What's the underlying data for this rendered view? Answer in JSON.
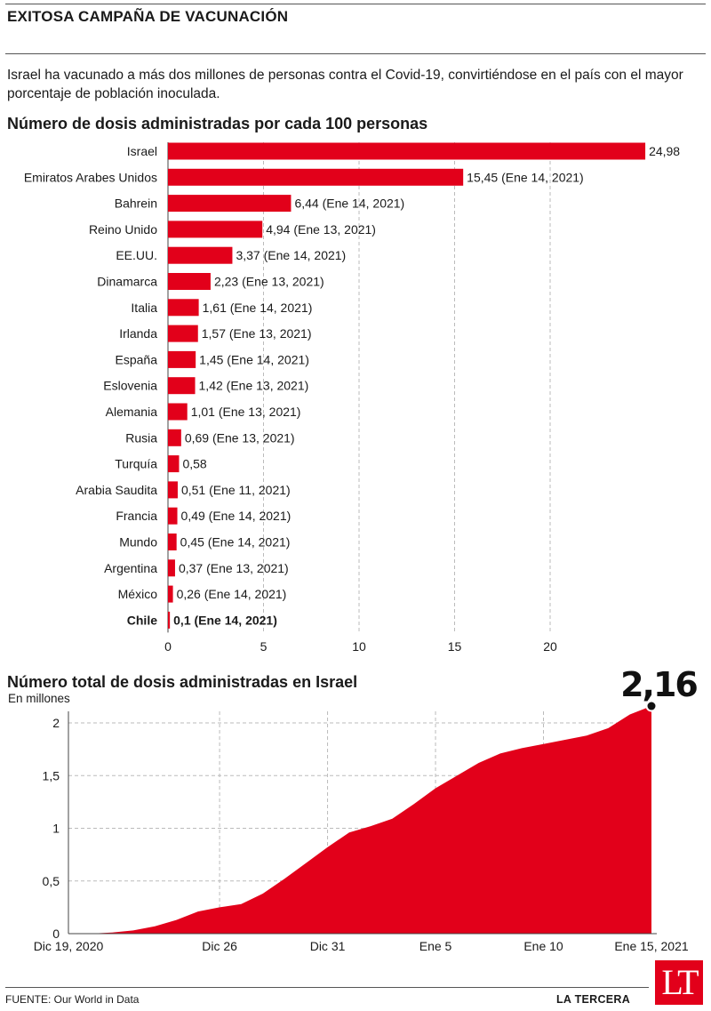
{
  "header": {
    "title": "EXITOSA CAMPAÑA DE VACUNACIÓN",
    "intro": "Israel ha vacunado a más dos millones de personas contra el Covid-19, convirtiéndose en el país con el mayor porcentaje de población inoculada."
  },
  "colors": {
    "accent": "#e2001a",
    "text": "#1a1a1a",
    "grid": "#bbbbbb"
  },
  "chart_data": [
    {
      "type": "bar",
      "orientation": "horizontal",
      "title": "Número de dosis administradas por cada 100 personas",
      "xlabel": "",
      "ylabel": "",
      "xlim": [
        0,
        25
      ],
      "xticks": [
        0,
        5,
        10,
        15,
        20
      ],
      "grid": true,
      "highlight": "Chile",
      "categories": [
        "Israel",
        "Emiratos Arabes Unidos",
        "Bahrein",
        "Reino Unido",
        "EE.UU.",
        "Dinamarca",
        "Italia",
        "Irlanda",
        "España",
        "Eslovenia",
        "Alemania",
        "Rusia",
        "Turquía",
        "Arabia Saudita",
        "Francia",
        "Mundo",
        "Argentina",
        "México",
        "Chile"
      ],
      "values": [
        24.98,
        15.45,
        6.44,
        4.94,
        3.37,
        2.23,
        1.61,
        1.57,
        1.45,
        1.42,
        1.01,
        0.69,
        0.58,
        0.51,
        0.49,
        0.45,
        0.37,
        0.26,
        0.1
      ],
      "labels": [
        "24,98",
        "15,45 (Ene 14, 2021)",
        "6,44 (Ene 14, 2021)",
        "4,94 (Ene 13, 2021)",
        "3,37 (Ene 14, 2021)",
        "2,23 (Ene 13, 2021)",
        "1,61 (Ene 14, 2021)",
        "1,57 (Ene 13, 2021)",
        "1,45 (Ene 14, 2021)",
        "1,42 (Ene 13, 2021)",
        "1,01 (Ene 13, 2021)",
        "0,69 (Ene 13, 2021)",
        "0,58",
        "0,51 (Ene 11, 2021)",
        "0,49 (Ene 14, 2021)",
        "0,45 (Ene 14, 2021)",
        "0,37 (Ene 13, 2021)",
        "0,26 (Ene 14, 2021)",
        "0,1 (Ene 14, 2021)"
      ]
    },
    {
      "type": "area",
      "title": "Número total de dosis administradas en Israel",
      "ylabel": "En millones",
      "ylim": [
        0,
        2.16
      ],
      "yticks": [
        0,
        0.5,
        1,
        1.5,
        2
      ],
      "ytick_labels": [
        "0",
        "0,5",
        "1",
        "1,5",
        "2"
      ],
      "grid": true,
      "xlim": [
        0,
        27
      ],
      "xticks": [
        0,
        7,
        12,
        17,
        22,
        27
      ],
      "xtick_labels": [
        "Dic 19, 2020",
        "Dic 26",
        "Dic 31",
        "Ene 5",
        "Ene 10",
        "Ene 15, 2021"
      ],
      "x": [
        0,
        1,
        2,
        3,
        4,
        5,
        6,
        7,
        8,
        9,
        10,
        11,
        12,
        13,
        14,
        15,
        16,
        17,
        18,
        19,
        20,
        21,
        22,
        23,
        24,
        25,
        26,
        27
      ],
      "y": [
        0.0,
        0.0,
        0.01,
        0.03,
        0.07,
        0.13,
        0.21,
        0.25,
        0.28,
        0.38,
        0.52,
        0.67,
        0.82,
        0.96,
        1.02,
        1.09,
        1.23,
        1.38,
        1.5,
        1.62,
        1.71,
        1.76,
        1.8,
        1.84,
        1.88,
        1.95,
        2.08,
        2.16
      ],
      "final_label": "2,16"
    }
  ],
  "footer": {
    "source": "FUENTE: Our World in Data",
    "brand": "LA TERCERA",
    "logo": "LT"
  }
}
